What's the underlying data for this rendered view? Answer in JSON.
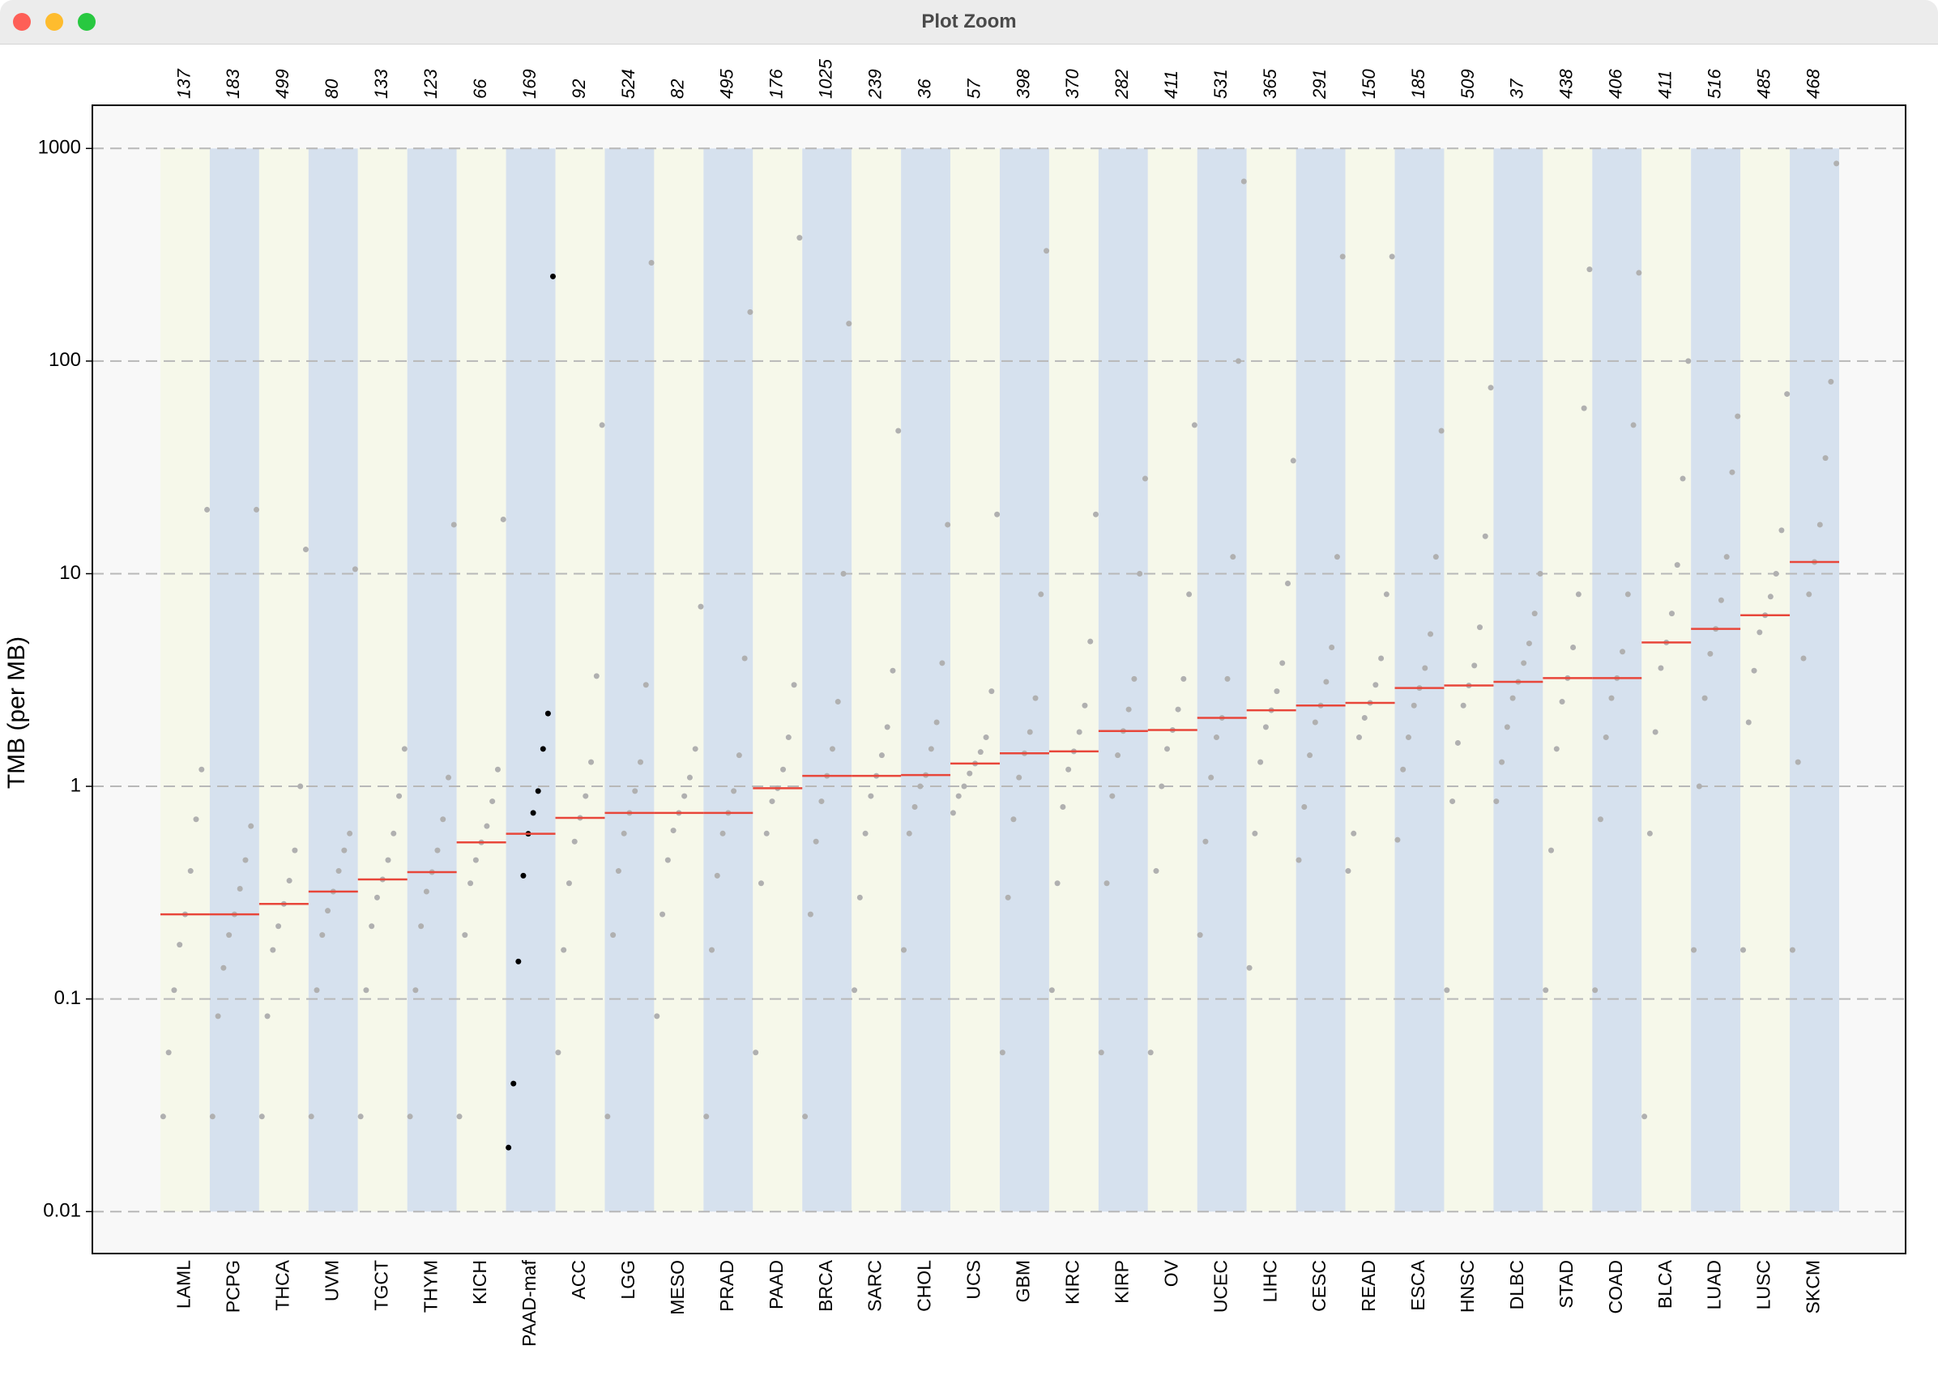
{
  "window_title": "Plot Zoom",
  "chart_data": {
    "type": "dotplot",
    "ylabel": "TMB (per MB)",
    "log_y": true,
    "grid": true,
    "ylim": [
      0.00635,
      1596
    ],
    "yticks": [
      0.01,
      0.1,
      1,
      10,
      100,
      1000
    ],
    "band_colors": [
      "#f6f8ea",
      "#d6e1ee"
    ],
    "median_color": "#e8463a",
    "categories": [
      "LAML",
      "PCPG",
      "THCA",
      "UVM",
      "TGCT",
      "THYM",
      "KICH",
      "PAAD-maf",
      "ACC",
      "LGG",
      "MESO",
      "PRAD",
      "PAAD",
      "BRCA",
      "SARC",
      "CHOL",
      "UCS",
      "GBM",
      "KIRC",
      "KIRP",
      "OV",
      "UCEC",
      "LIHC",
      "CESC",
      "READ",
      "ESCA",
      "HNSC",
      "DLBC",
      "STAD",
      "COAD",
      "BLCA",
      "LUAD",
      "LUSC",
      "SKCM"
    ],
    "counts": [
      137,
      183,
      499,
      80,
      133,
      123,
      66,
      169,
      92,
      524,
      82,
      495,
      176,
      1025,
      239,
      36,
      57,
      398,
      370,
      282,
      411,
      531,
      365,
      291,
      150,
      185,
      509,
      37,
      438,
      406,
      411,
      516,
      485,
      468
    ],
    "medians": [
      0.25,
      0.25,
      0.28,
      0.32,
      0.365,
      0.395,
      0.545,
      0.598,
      0.711,
      0.75,
      0.75,
      0.75,
      0.98,
      1.12,
      1.12,
      1.13,
      1.28,
      1.43,
      1.46,
      1.82,
      1.84,
      2.1,
      2.28,
      2.4,
      2.47,
      2.9,
      2.98,
      3.1,
      3.23,
      3.23,
      4.75,
      5.5,
      6.38,
      11.35
    ],
    "point_colors": [
      "#b0b0b0",
      "#b0b0b0",
      "#b0b0b0",
      "#b0b0b0",
      "#b0b0b0",
      "#b0b0b0",
      "#b0b0b0",
      "#000000",
      "#b0b0b0",
      "#b0b0b0",
      "#b0b0b0",
      "#b0b0b0",
      "#b0b0b0",
      "#b0b0b0",
      "#b0b0b0",
      "#b0b0b0",
      "#b0b0b0",
      "#b0b0b0",
      "#b0b0b0",
      "#b0b0b0",
      "#b0b0b0",
      "#b0b0b0",
      "#b0b0b0",
      "#b0b0b0",
      "#b0b0b0",
      "#b0b0b0",
      "#b0b0b0",
      "#b0b0b0",
      "#b0b0b0",
      "#b0b0b0",
      "#b0b0b0",
      "#b0b0b0",
      "#b0b0b0",
      "#b0b0b0"
    ],
    "values": [
      [
        0.028,
        0.056,
        0.11,
        0.18,
        0.25,
        0.4,
        0.7,
        1.2,
        20
      ],
      [
        0.028,
        0.083,
        0.14,
        0.2,
        0.25,
        0.33,
        0.45,
        0.65,
        20
      ],
      [
        0.028,
        0.083,
        0.17,
        0.22,
        0.28,
        0.36,
        0.5,
        1.0,
        13
      ],
      [
        0.028,
        0.11,
        0.2,
        0.26,
        0.32,
        0.4,
        0.5,
        0.6,
        10.5
      ],
      [
        0.028,
        0.11,
        0.22,
        0.3,
        0.365,
        0.45,
        0.6,
        0.9,
        1.5
      ],
      [
        0.028,
        0.11,
        0.22,
        0.32,
        0.395,
        0.5,
        0.7,
        1.1,
        17
      ],
      [
        0.028,
        0.2,
        0.35,
        0.45,
        0.545,
        0.65,
        0.85,
        1.2,
        18
      ],
      [
        0.02,
        0.04,
        0.15,
        0.38,
        0.598,
        0.75,
        0.95,
        1.5,
        2.2,
        250
      ],
      [
        0.056,
        0.17,
        0.35,
        0.55,
        0.711,
        0.9,
        1.3,
        3.3,
        50
      ],
      [
        0.028,
        0.2,
        0.4,
        0.6,
        0.75,
        0.95,
        1.3,
        3,
        290
      ],
      [
        0.083,
        0.25,
        0.45,
        0.62,
        0.75,
        0.9,
        1.1,
        1.5,
        7
      ],
      [
        0.028,
        0.17,
        0.38,
        0.6,
        0.75,
        0.95,
        1.4,
        4,
        170
      ],
      [
        0.056,
        0.35,
        0.6,
        0.85,
        0.98,
        1.2,
        1.7,
        3,
        380
      ],
      [
        0.028,
        0.25,
        0.55,
        0.85,
        1.12,
        1.5,
        2.5,
        10,
        150
      ],
      [
        0.11,
        0.3,
        0.6,
        0.9,
        1.12,
        1.4,
        1.9,
        3.5,
        47
      ],
      [
        0.17,
        0.6,
        0.8,
        1.0,
        1.13,
        1.5,
        2.0,
        3.8,
        17
      ],
      [
        0.75,
        0.9,
        1.0,
        1.15,
        1.28,
        1.45,
        1.7,
        2.8,
        19
      ],
      [
        0.056,
        0.3,
        0.7,
        1.1,
        1.43,
        1.8,
        2.6,
        8,
        330
      ],
      [
        0.11,
        0.35,
        0.8,
        1.2,
        1.46,
        1.8,
        2.4,
        4.8,
        19
      ],
      [
        0.056,
        0.35,
        0.9,
        1.4,
        1.82,
        2.3,
        3.2,
        10,
        28
      ],
      [
        0.056,
        0.4,
        1.0,
        1.5,
        1.84,
        2.3,
        3.2,
        8,
        50
      ],
      [
        0.2,
        0.55,
        1.1,
        1.7,
        2.1,
        3.2,
        12,
        100,
        700
      ],
      [
        0.14,
        0.6,
        1.3,
        1.9,
        2.28,
        2.8,
        3.8,
        9,
        34
      ],
      [
        0.45,
        0.8,
        1.4,
        2.0,
        2.4,
        3.1,
        4.5,
        12,
        310
      ],
      [
        0.4,
        0.6,
        1.7,
        2.1,
        2.47,
        3.0,
        4.0,
        8,
        310
      ],
      [
        0.56,
        1.2,
        1.7,
        2.4,
        2.9,
        3.6,
        5.2,
        12,
        47
      ],
      [
        0.11,
        0.85,
        1.6,
        2.4,
        2.98,
        3.7,
        5.6,
        15,
        75
      ],
      [
        0.85,
        1.3,
        1.9,
        2.6,
        3.1,
        3.8,
        4.7,
        6.5,
        10
      ],
      [
        0.11,
        0.5,
        1.5,
        2.5,
        3.23,
        4.5,
        8,
        60,
        270
      ],
      [
        0.11,
        0.7,
        1.7,
        2.6,
        3.23,
        4.3,
        8,
        50,
        260
      ],
      [
        0.028,
        0.6,
        1.8,
        3.6,
        4.75,
        6.5,
        11,
        28,
        100
      ],
      [
        0.17,
        1.0,
        2.6,
        4.2,
        5.5,
        7.5,
        12,
        30,
        55
      ],
      [
        0.17,
        2.0,
        3.5,
        5.3,
        6.38,
        7.8,
        10,
        16,
        70
      ],
      [
        0.17,
        1.3,
        4.0,
        8,
        11.35,
        17,
        35,
        80,
        850
      ]
    ]
  }
}
